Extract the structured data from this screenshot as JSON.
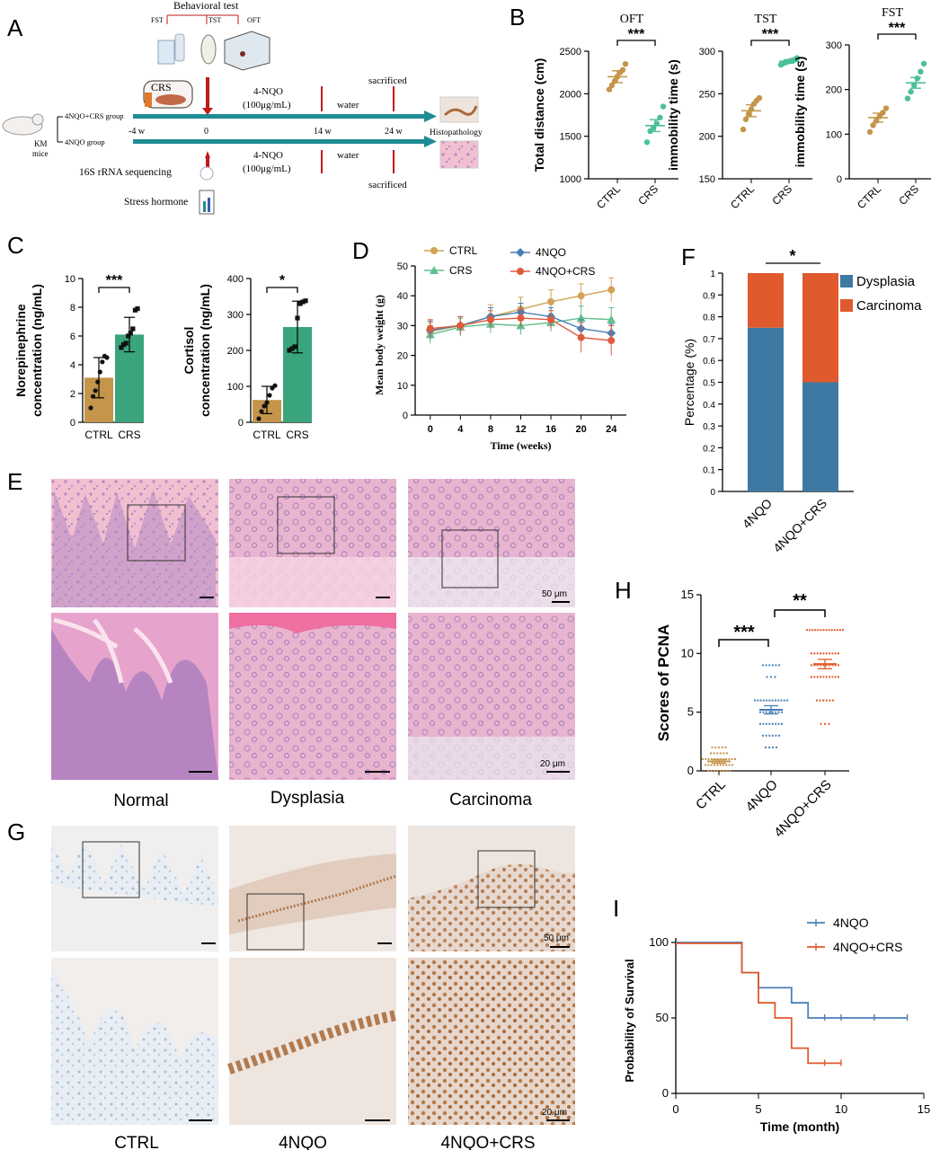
{
  "colors": {
    "ctrl": "#c4954a",
    "crs": "#4bbf9a",
    "crs_bar": "#3aa57d",
    "nqo": "#3f7ca6",
    "nqo_crs": "#e05a2c",
    "nqo_line": "#4a7fb5",
    "ctrl_line": "#d2a255",
    "crs_line": "#5fbf8e",
    "nqo_crs_line": "#e05a3c",
    "dysplasia": "#3e79a3",
    "carcinoma": "#e05a2e",
    "red_bar": "#c11a1a",
    "teal_arrow": "#1e8c95",
    "he_pink": "#f0b9cc",
    "he_purple": "#b490c8",
    "ihc_bg": "#ebe4df",
    "ihc_brown": "#a8683a",
    "ihc_blue": "#9cb6cf"
  },
  "panel_a": {
    "letter": "A",
    "behavioral_test": "Behavioral test",
    "fst": "FST",
    "tst": "TST",
    "oft": "OFT",
    "crs": "CRS",
    "group1": "4NQO+CRS group",
    "group2": "4NQO group",
    "mouse_line1": "KM",
    "mouse_line2": "mice",
    "t_m4": "-4 w",
    "t_0": "0",
    "t_14": "14 w",
    "t_24": "24 w",
    "nqo_top1": "4-NQO",
    "nqo_top2": "(100μg/mL)",
    "nqo_bot1": "4-NQO",
    "nqo_bot2": "(100μg/mL)",
    "water_top": "water",
    "water_bot": "water",
    "sacrificed_top": "sacrificed",
    "sacrificed_bot": "sacrificed",
    "histopathology": "Histopathology",
    "sequencing": "16S rRNA sequencing",
    "hormone": "Stress hormone"
  },
  "panel_e": {
    "letter": "E",
    "scale_top": "50 μm",
    "scale_bottom": "20 μm",
    "labels": [
      "Normal",
      "Dysplasia",
      "Carcinoma"
    ]
  },
  "panel_g": {
    "letter": "G",
    "scale_top": "50 μm",
    "scale_bottom": "20 μm",
    "labels": [
      "CTRL",
      "4NQO",
      "4NQO+CRS"
    ]
  },
  "chart_data": [
    {
      "id": "B-OFT",
      "letter": "B",
      "type": "scatter",
      "title": "OFT",
      "ylabel": "Total distance (cm)",
      "ylim": [
        1000,
        2500
      ],
      "yticks": [
        1000,
        1500,
        2000,
        2500
      ],
      "categories": [
        "CTRL",
        "CRS"
      ],
      "significance": "***",
      "series": [
        {
          "name": "CTRL",
          "mean": 2200,
          "sem": 70,
          "values": [
            2050,
            2100,
            2150,
            2200,
            2250,
            2280,
            2350
          ]
        },
        {
          "name": "CRS",
          "mean": 1625,
          "sem": 70,
          "values": [
            1430,
            1560,
            1600,
            1650,
            1720,
            1850
          ]
        }
      ]
    },
    {
      "id": "B-TST",
      "type": "scatter",
      "title": "TST",
      "ylabel": "immobility time (s)",
      "ylim": [
        150,
        300
      ],
      "yticks": [
        150,
        200,
        250,
        300
      ],
      "categories": [
        "CTRL",
        "CRS"
      ],
      "significance": "***",
      "series": [
        {
          "name": "CTRL",
          "mean": 230,
          "sem": 7,
          "values": [
            208,
            220,
            226,
            232,
            238,
            242,
            245
          ]
        },
        {
          "name": "CRS",
          "mean": 288,
          "sem": 2,
          "values": [
            284,
            286,
            287,
            288,
            289,
            290,
            292
          ]
        }
      ]
    },
    {
      "id": "B-FST",
      "type": "scatter",
      "title": "FST",
      "ylabel": "immobility time (s)",
      "ylim": [
        0,
        300
      ],
      "yticks": [
        0,
        100,
        200,
        300
      ],
      "categories": [
        "CTRL",
        "CRS"
      ],
      "significance": "***",
      "series": [
        {
          "name": "CTRL",
          "mean": 137,
          "sem": 10,
          "values": [
            105,
            120,
            130,
            140,
            148,
            158
          ]
        },
        {
          "name": "CRS",
          "mean": 215,
          "sem": 12,
          "values": [
            180,
            195,
            210,
            225,
            240,
            258
          ]
        }
      ]
    },
    {
      "id": "C-NE",
      "letter": "C",
      "type": "bar",
      "ylabel": "Norepinephrine concentration (ng/mL)",
      "ylabel_lines": [
        "Norepinephrine",
        "concentration (ng/mL)"
      ],
      "ylim": [
        0,
        10
      ],
      "yticks": [
        0,
        2,
        4,
        6,
        8,
        10
      ],
      "categories": [
        "CTRL",
        "CRS"
      ],
      "values": [
        3.1,
        6.1
      ],
      "errors": [
        1.4,
        1.2
      ],
      "significance": "***",
      "points": [
        [
          1.0,
          1.8,
          2.2,
          2.8,
          3.5,
          4.2,
          4.6,
          4.5
        ],
        [
          5.2,
          5.4,
          5.5,
          6.0,
          6.2,
          6.5,
          7.8,
          7.9
        ]
      ]
    },
    {
      "id": "C-Cortisol",
      "type": "bar",
      "ylabel": "Cortisol concentration (ng/mL)",
      "ylabel_lines": [
        "Cortisol",
        "concentration (ng/mL)"
      ],
      "ylim": [
        0,
        400
      ],
      "yticks": [
        0,
        100,
        200,
        300,
        400
      ],
      "categories": [
        "CTRL",
        "CRS"
      ],
      "values": [
        62,
        265
      ],
      "errors": [
        38,
        72
      ],
      "significance": "*",
      "points": [
        [
          10,
          30,
          45,
          55,
          75,
          95,
          102
        ],
        [
          200,
          205,
          210,
          290,
          330,
          335,
          338
        ]
      ]
    },
    {
      "id": "D",
      "letter": "D",
      "type": "line",
      "xlabel": "Time (weeks)",
      "ylabel": "Mean body weight (g)",
      "xlim": [
        -2,
        26
      ],
      "ylim": [
        0,
        50
      ],
      "x": [
        0,
        4,
        8,
        12,
        16,
        20,
        24
      ],
      "yticks": [
        0,
        10,
        20,
        30,
        40,
        50
      ],
      "series": [
        {
          "name": "CTRL",
          "values": [
            28,
            30,
            33,
            35.5,
            38,
            40,
            42
          ],
          "errors": [
            3,
            3,
            4,
            4,
            4,
            4,
            4
          ],
          "marker": "circle"
        },
        {
          "name": "CRS",
          "values": [
            27,
            29.5,
            30.5,
            30,
            31,
            32.5,
            32
          ],
          "errors": [
            3,
            3,
            3,
            3,
            3,
            4,
            4
          ],
          "marker": "triangle"
        },
        {
          "name": "4NQO",
          "values": [
            28.5,
            30,
            33,
            34.5,
            33,
            29,
            27.5
          ],
          "errors": [
            3,
            3,
            3,
            3,
            3,
            3,
            3
          ],
          "marker": "diamond"
        },
        {
          "name": "4NQO+CRS",
          "values": [
            29,
            30,
            32,
            32.5,
            32,
            26,
            25
          ],
          "errors": [
            3,
            3,
            3,
            3,
            3,
            5,
            5
          ],
          "marker": "circle"
        }
      ]
    },
    {
      "id": "F",
      "letter": "F",
      "type": "bar",
      "ylabel": "Percentage (%)",
      "ylim": [
        0,
        1
      ],
      "yticks": [
        "0",
        "0.1",
        "0.2",
        "0.3",
        "0.4",
        "0.5",
        "0.6",
        "0.7",
        "0.8",
        "0.9",
        "1"
      ],
      "categories": [
        "4NQO",
        "4NQO+CRS"
      ],
      "significance": "*",
      "series": [
        {
          "name": "Dysplasia",
          "values": [
            0.75,
            0.5
          ]
        },
        {
          "name": "Carcinoma",
          "values": [
            0.25,
            0.5
          ]
        }
      ],
      "legend": "top-right"
    },
    {
      "id": "H",
      "letter": "H",
      "type": "scatter",
      "ylabel": "Scores of PCNA",
      "ylim": [
        0,
        15
      ],
      "yticks": [
        0,
        5,
        10,
        15
      ],
      "categories": [
        "CTRL",
        "4NQO",
        "4NQO+CRS"
      ],
      "means": [
        0.8,
        5.2,
        9.1
      ],
      "sems": [
        0.15,
        0.35,
        0.4
      ],
      "significance": [
        {
          "between": [
            "CTRL",
            "4NQO"
          ],
          "label": "***"
        },
        {
          "between": [
            "4NQO",
            "4NQO+CRS"
          ],
          "label": "**"
        }
      ],
      "points": [
        {
          "value": 0,
          "count": 8
        },
        {
          "value": 0.5,
          "count": 10
        },
        {
          "value": 1,
          "count": 12
        },
        {
          "value": 1.5,
          "count": 6
        },
        {
          "value": 2,
          "count": 5
        }
      ],
      "points_4nqo": [
        {
          "value": 2,
          "count": 4
        },
        {
          "value": 3,
          "count": 6
        },
        {
          "value": 4,
          "count": 8
        },
        {
          "value": 5,
          "count": 8
        },
        {
          "value": 6,
          "count": 12
        },
        {
          "value": 8,
          "count": 3
        },
        {
          "value": 9,
          "count": 6
        }
      ],
      "points_crs": [
        {
          "value": 4,
          "count": 3
        },
        {
          "value": 6,
          "count": 6
        },
        {
          "value": 8,
          "count": 10
        },
        {
          "value": 9,
          "count": 10
        },
        {
          "value": 10,
          "count": 10
        },
        {
          "value": 12,
          "count": 14
        }
      ]
    },
    {
      "id": "I",
      "letter": "I",
      "type": "line",
      "xlabel": "Time (month)",
      "ylabel": "Probability of Survival",
      "xlim": [
        0,
        15
      ],
      "ylim": [
        0,
        100
      ],
      "xticks": [
        0,
        5,
        10,
        15
      ],
      "yticks": [
        0,
        50,
        100
      ],
      "legend": "top-right",
      "series": [
        {
          "name": "4NQO",
          "steps": [
            [
              0,
              100
            ],
            [
              4,
              100
            ],
            [
              4,
              80
            ],
            [
              5,
              80
            ],
            [
              5,
              70
            ],
            [
              7,
              70
            ],
            [
              7,
              60
            ],
            [
              8,
              60
            ],
            [
              8,
              50
            ],
            [
              14,
              50
            ]
          ],
          "censored": [
            [
              9,
              50
            ],
            [
              10,
              50
            ],
            [
              12,
              50
            ],
            [
              14,
              50
            ]
          ]
        },
        {
          "name": "4NQO+CRS",
          "steps": [
            [
              0,
              100
            ],
            [
              4,
              100
            ],
            [
              4,
              80
            ],
            [
              5,
              80
            ],
            [
              5,
              60
            ],
            [
              6,
              60
            ],
            [
              6,
              50
            ],
            [
              7,
              50
            ],
            [
              7,
              30
            ],
            [
              8,
              30
            ],
            [
              8,
              20
            ],
            [
              10,
              20
            ]
          ],
          "censored": [
            [
              9,
              20
            ],
            [
              10,
              20
            ]
          ]
        }
      ]
    }
  ]
}
